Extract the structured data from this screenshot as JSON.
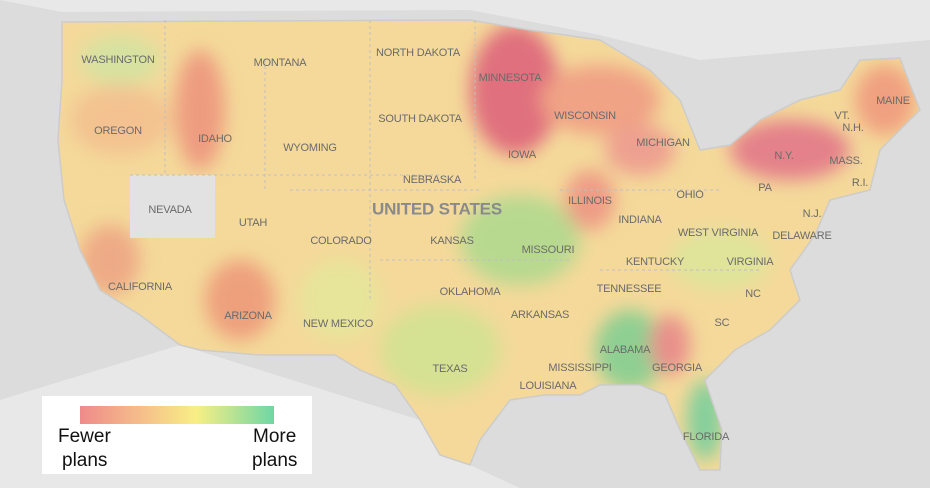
{
  "map": {
    "country_label": "UNITED STATES",
    "labels": [
      "WASHINGTON",
      "MONTANA",
      "NORTH DAKOTA",
      "MINNESOTA",
      "OREGON",
      "IDAHO",
      "WYOMING",
      "SOUTH DAKOTA",
      "WISCONSIN",
      "MICHIGAN",
      "VT.",
      "MAINE",
      "N.H.",
      "N.Y.",
      "MASS.",
      "R.I.",
      "IOWA",
      "NEBRASKA",
      "PA",
      "NEVADA",
      "UTAH",
      "ILLINOIS",
      "INDIANA",
      "OHIO",
      "N.J.",
      "KANSAS",
      "COLORADO",
      "WEST VIRGINIA",
      "DELAWARE",
      "MISSOURI",
      "KENTUCKY",
      "VIRGINIA",
      "CALIFORNIA",
      "TENNESSEE",
      "OKLAHOMA",
      "NC",
      "ARIZONA",
      "NEW MEXICO",
      "ARKANSAS",
      "SC",
      "ALABAMA",
      "GEORGIA",
      "MISSISSIPPI",
      "TEXAS",
      "LOUISIANA",
      "FLORIDA"
    ]
  },
  "legend": {
    "low": [
      "Fewer",
      "plans"
    ],
    "high": [
      "More",
      "plans"
    ]
  }
}
